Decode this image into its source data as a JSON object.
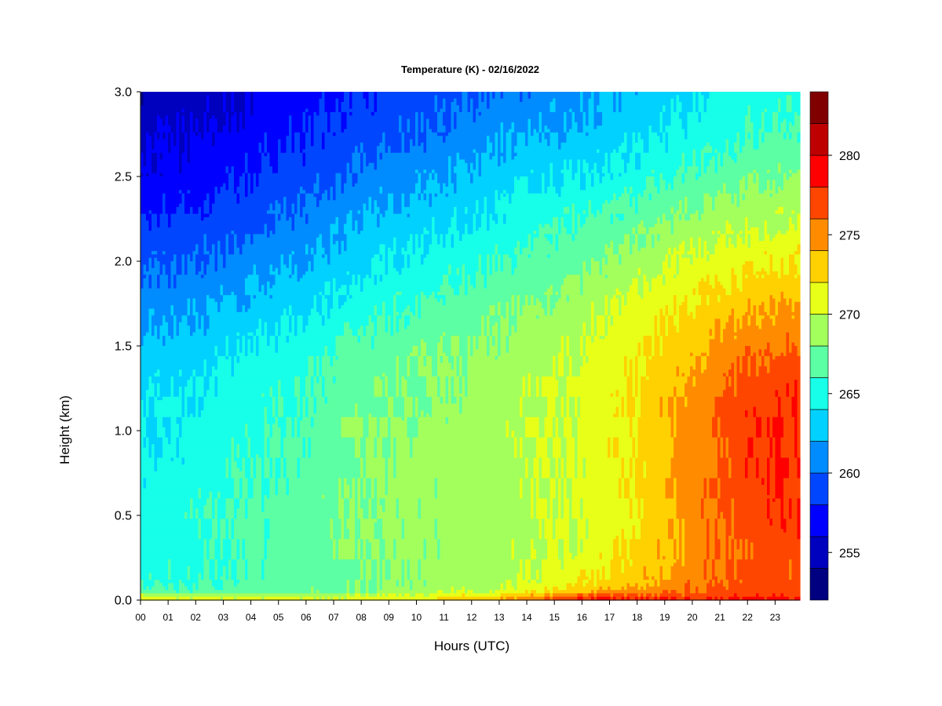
{
  "chart_data": {
    "type": "heatmap",
    "title": "Temperature (K) - 02/16/2022",
    "xlabel": "Hours (UTC)",
    "ylabel": "Height (km)",
    "x_ticks": [
      "00",
      "01",
      "02",
      "03",
      "04",
      "05",
      "06",
      "07",
      "08",
      "09",
      "10",
      "11",
      "12",
      "13",
      "14",
      "15",
      "16",
      "17",
      "18",
      "19",
      "20",
      "21",
      "22",
      "23"
    ],
    "x_range": [
      0,
      23.9
    ],
    "y_ticks": [
      "0.0",
      "0.5",
      "1.0",
      "1.5",
      "2.0",
      "2.5",
      "3.0"
    ],
    "ylim": [
      0,
      3
    ],
    "colorbar": {
      "levels": [
        252,
        254,
        256,
        258,
        260,
        262,
        264,
        266,
        268,
        270,
        272,
        274,
        276,
        278,
        280,
        282,
        284
      ],
      "tick_labels": [
        "255",
        "260",
        "265",
        "270",
        "275",
        "280"
      ],
      "tick_values": [
        255,
        260,
        265,
        270,
        275,
        280
      ],
      "colors": [
        "#000080",
        "#0000bf",
        "#0000ff",
        "#0046ff",
        "#008cff",
        "#00d1ff",
        "#17ffe8",
        "#5cffa3",
        "#a3ff5c",
        "#e8ff17",
        "#ffd100",
        "#ff8c00",
        "#ff4600",
        "#ff0000",
        "#bf0000",
        "#800000"
      ]
    },
    "heights_km": [
      0,
      0.02,
      0.05,
      0.1,
      0.2,
      0.3,
      0.5,
      0.75,
      1.0,
      1.25,
      1.5,
      1.75,
      2.0,
      2.25,
      2.5,
      2.75,
      3.0
    ],
    "hours": [
      0,
      2,
      4,
      6,
      8,
      10,
      12,
      14,
      16,
      18,
      20,
      22,
      23.9
    ],
    "temperature_k": [
      [
        271.5,
        271.0,
        271.0,
        271.0,
        271.0,
        271.5,
        273.5,
        275.5,
        278.5,
        279.0,
        278.5,
        279.5,
        279.0
      ],
      [
        270.5,
        270.0,
        270.0,
        270.0,
        270.5,
        270.5,
        272.5,
        274.0,
        277.0,
        277.5,
        277.0,
        278.0,
        277.5
      ],
      [
        267.0,
        266.5,
        267.0,
        267.5,
        268.0,
        269.0,
        270.0,
        271.5,
        273.5,
        275.0,
        276.0,
        277.0,
        276.5
      ],
      [
        265.5,
        265.8,
        266.5,
        267.0,
        268.0,
        268.5,
        269.0,
        270.0,
        272.0,
        273.5,
        275.5,
        277.0,
        276.5
      ],
      [
        265.0,
        265.5,
        266.5,
        267.0,
        268.0,
        268.5,
        269.0,
        269.5,
        271.0,
        273.0,
        275.0,
        276.5,
        276.5
      ],
      [
        265.0,
        265.5,
        266.5,
        267.0,
        268.0,
        268.5,
        269.0,
        269.5,
        270.5,
        272.5,
        275.0,
        276.5,
        277.0
      ],
      [
        265.0,
        265.5,
        266.5,
        267.0,
        268.5,
        268.5,
        269.0,
        269.5,
        270.5,
        272.0,
        275.0,
        277.0,
        278.0
      ],
      [
        264.5,
        265.0,
        266.0,
        266.5,
        268.0,
        268.5,
        269.0,
        269.5,
        270.5,
        272.0,
        275.0,
        277.5,
        278.0
      ],
      [
        264.0,
        264.5,
        265.5,
        266.5,
        268.0,
        268.5,
        269.0,
        269.5,
        270.5,
        272.5,
        275.0,
        277.5,
        278.0
      ],
      [
        263.5,
        264.0,
        265.0,
        266.0,
        267.5,
        268.0,
        268.5,
        269.5,
        270.5,
        272.0,
        274.5,
        277.0,
        277.5
      ],
      [
        262.5,
        263.0,
        264.0,
        265.0,
        266.5,
        267.5,
        268.0,
        269.0,
        270.0,
        271.5,
        273.5,
        275.5,
        276.0
      ],
      [
        261.0,
        261.5,
        262.5,
        263.5,
        265.0,
        266.0,
        267.0,
        268.0,
        269.0,
        270.5,
        272.0,
        273.5,
        274.0
      ],
      [
        259.5,
        260.0,
        261.0,
        262.0,
        263.5,
        264.5,
        265.5,
        266.5,
        267.5,
        269.0,
        270.5,
        271.5,
        272.0
      ],
      [
        258.0,
        258.5,
        259.5,
        260.5,
        262.0,
        263.0,
        264.0,
        265.0,
        266.0,
        267.0,
        268.5,
        269.5,
        270.0
      ],
      [
        256.5,
        257.0,
        258.0,
        259.0,
        260.5,
        261.5,
        262.5,
        263.5,
        264.0,
        265.0,
        266.5,
        267.5,
        268.0
      ],
      [
        255.5,
        256.0,
        257.0,
        258.0,
        259.0,
        260.0,
        261.0,
        262.0,
        262.5,
        263.5,
        264.5,
        266.0,
        266.5
      ],
      [
        254.5,
        255.0,
        256.0,
        257.0,
        258.0,
        259.0,
        260.0,
        260.5,
        261.5,
        262.5,
        263.5,
        265.0,
        265.5
      ]
    ]
  }
}
